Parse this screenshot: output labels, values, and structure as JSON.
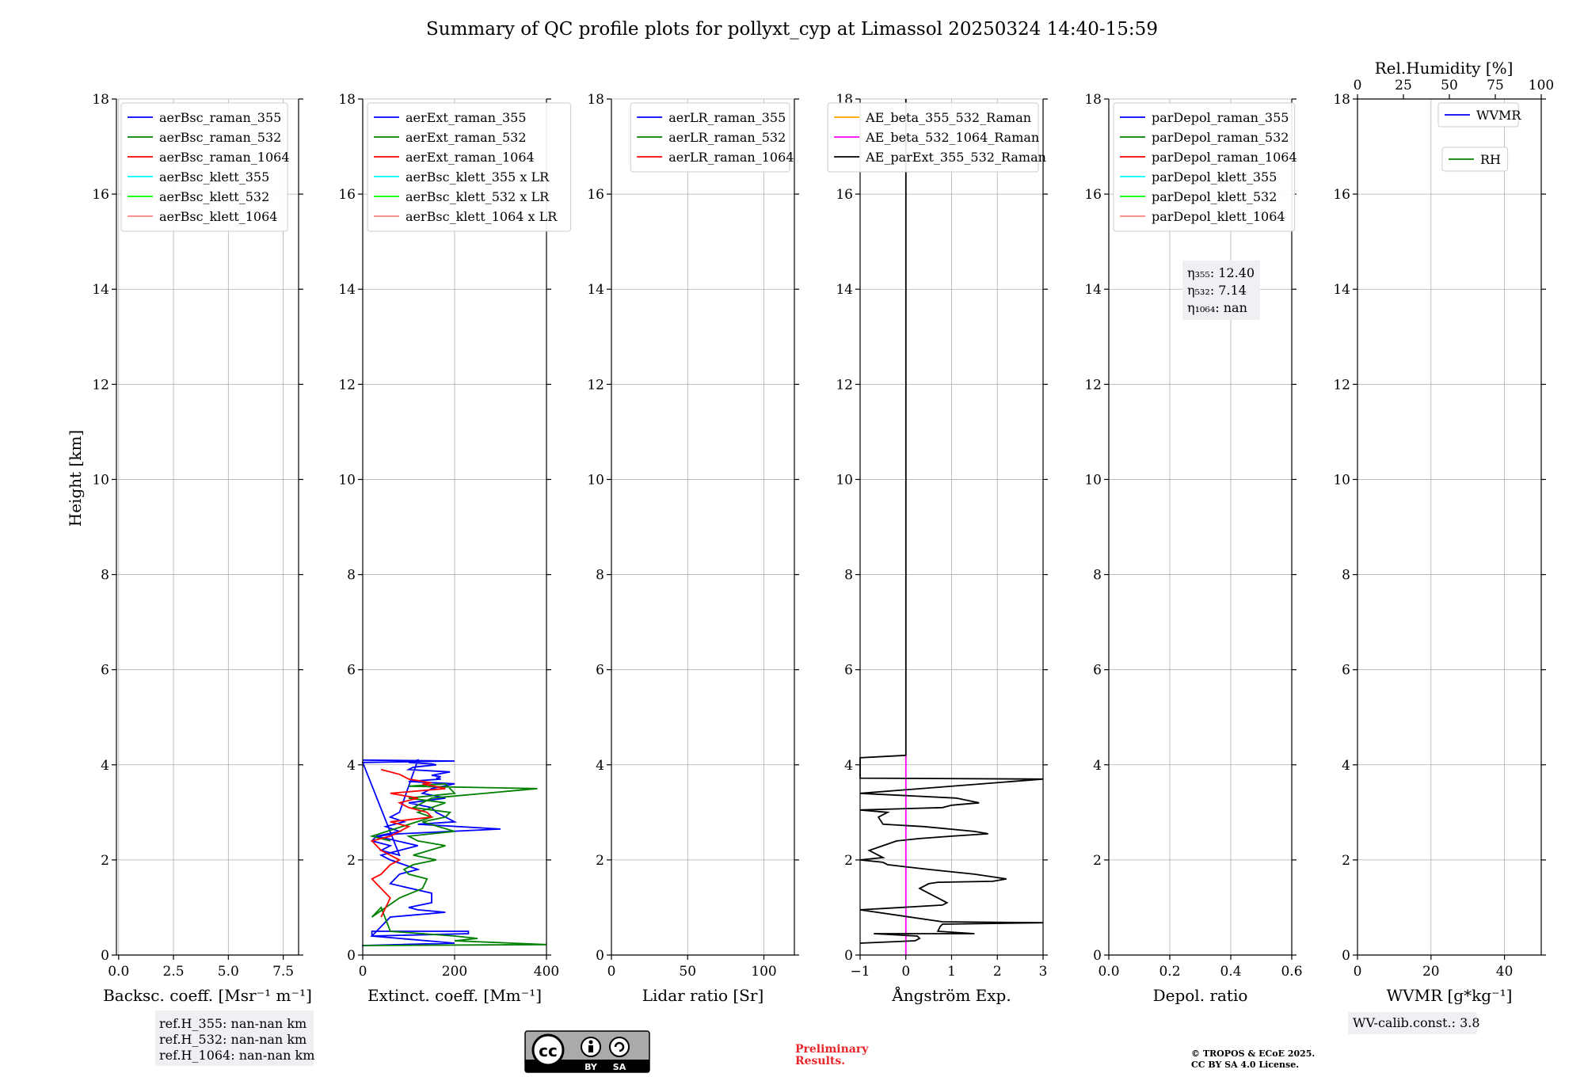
{
  "figure": {
    "title": "Summary of QC profile plots for pollyxt_cyp at Limassol 20250324 14:40-15:59",
    "ylabel": "Height [km]",
    "y_ticks": [
      "0",
      "2",
      "4",
      "6",
      "8",
      "10",
      "12",
      "14",
      "16",
      "18"
    ],
    "ref_h": [
      "ref.H_355: nan-nan km",
      "ref.H_532: nan-nan km",
      "ref.H_1064: nan-nan km"
    ],
    "cc_license_badge": {
      "labels": [
        "BY",
        "SA"
      ]
    },
    "preliminary": [
      "Preliminary",
      "Results."
    ],
    "copyright": [
      "© TROPOS & ECoE 2025.",
      "CC BY SA 4.0 License."
    ],
    "wv_calib": "WV-calib.const.: 3.8",
    "eta": [
      "η₃₅₅: 12.40",
      "η₅₃₂: 7.14",
      "η₁₀₆₄: nan"
    ],
    "rh_axis_label": "Rel.Humidity [%]",
    "rh_ticks": [
      "0",
      "25",
      "50",
      "75",
      "100"
    ]
  },
  "chart_data": [
    {
      "type": "line",
      "xlabel": "Backsc. coeff. [Msr⁻¹ m⁻¹]",
      "xlim": [
        -0.1,
        8.2
      ],
      "ylim": [
        0,
        18
      ],
      "x_ticks": [
        "0.0",
        "2.5",
        "5.0",
        "7.5"
      ],
      "grid": true,
      "legend_position": "top-left",
      "legend": [
        {
          "name": "aerBsc_raman_355",
          "color": "#0000ff"
        },
        {
          "name": "aerBsc_raman_532",
          "color": "#008000"
        },
        {
          "name": "aerBsc_raman_1064",
          "color": "#ff0000"
        },
        {
          "name": "aerBsc_klett_355",
          "color": "#00ffff"
        },
        {
          "name": "aerBsc_klett_532",
          "color": "#00ff00"
        },
        {
          "name": "aerBsc_klett_1064",
          "color": "#ff8080"
        }
      ],
      "series": []
    },
    {
      "type": "line",
      "xlabel": "Extinct. coeff. [Mm⁻¹]",
      "xlim": [
        0,
        400
      ],
      "ylim": [
        0,
        18
      ],
      "x_ticks": [
        "0",
        "200",
        "400"
      ],
      "grid": true,
      "legend_position": "top-left",
      "legend": [
        {
          "name": "aerExt_raman_355",
          "color": "#0000ff"
        },
        {
          "name": "aerExt_raman_532",
          "color": "#008000"
        },
        {
          "name": "aerExt_raman_1064",
          "color": "#ff0000"
        },
        {
          "name": "aerBsc_klett_355 x LR",
          "color": "#00ffff"
        },
        {
          "name": "aerBsc_klett_532 x LR",
          "color": "#00ff00"
        },
        {
          "name": "aerBsc_klett_1064 x LR",
          "color": "#ff8080"
        }
      ],
      "series": [
        {
          "name": "aerExt_raman_355",
          "color": "#0000ff",
          "x": [
            0,
            0,
            200,
            20,
            20,
            230,
            230,
            20,
            60,
            180,
            120,
            100,
            150,
            150,
            60,
            80,
            120,
            60,
            40,
            120,
            30,
            80,
            300,
            120,
            200,
            160,
            150,
            100,
            180,
            130,
            150,
            200,
            100,
            170,
            160,
            170,
            150,
            190,
            100,
            110,
            160,
            150,
            100,
            120,
            80,
            60,
            90,
            50,
            80,
            30,
            20,
            60,
            40,
            80,
            0,
            200,
            0
          ],
          "y": [
            0.18,
            0.2,
            0.25,
            0.4,
            0.5,
            0.5,
            0.45,
            0.4,
            0.8,
            0.9,
            0.95,
            1.0,
            1.1,
            1.3,
            1.5,
            1.7,
            1.8,
            2.0,
            2.1,
            2.3,
            2.5,
            2.55,
            2.65,
            2.75,
            2.8,
            3.0,
            3.1,
            3.2,
            3.3,
            3.4,
            3.5,
            3.6,
            3.65,
            3.7,
            3.72,
            3.75,
            3.78,
            3.85,
            3.9,
            3.95,
            4.0,
            4.02,
            4.05,
            4.1,
            3.0,
            2.9,
            2.8,
            2.7,
            2.6,
            2.5,
            2.4,
            2.3,
            2.2,
            2.1,
            4.05,
            4.08,
            4.1
          ]
        },
        {
          "name": "aerExt_raman_532",
          "color": "#008000",
          "x": [
            0,
            400,
            200,
            250,
            200,
            60,
            40,
            20,
            80,
            130,
            140,
            100,
            90,
            110,
            160,
            110,
            180,
            120,
            100,
            200,
            130,
            180,
            190,
            110,
            150,
            380,
            100,
            180,
            200,
            100,
            180,
            120,
            150,
            20,
            60
          ],
          "y": [
            0.2,
            0.22,
            0.3,
            0.35,
            0.4,
            0.5,
            1.0,
            0.8,
            1.2,
            1.4,
            1.6,
            1.7,
            1.8,
            1.9,
            2.0,
            2.1,
            2.3,
            2.4,
            2.5,
            2.6,
            2.8,
            2.9,
            3.0,
            3.1,
            3.3,
            3.5,
            3.55,
            3.6,
            3.4,
            3.3,
            3.2,
            3.0,
            2.9,
            2.5,
            2.4
          ]
        },
        {
          "name": "aerExt_raman_1064",
          "color": "#ff0000",
          "x": [
            40,
            50,
            60,
            40,
            30,
            20,
            40,
            60,
            80,
            40,
            20,
            60,
            80,
            100,
            60,
            150,
            140,
            100,
            80,
            120,
            60,
            180,
            130,
            150,
            100,
            80,
            40
          ],
          "y": [
            0.8,
            1.0,
            1.2,
            1.4,
            1.5,
            1.6,
            1.7,
            1.9,
            2.0,
            2.2,
            2.4,
            2.5,
            2.6,
            2.7,
            2.8,
            2.9,
            3.0,
            3.1,
            3.2,
            3.3,
            3.4,
            3.5,
            3.6,
            3.62,
            3.7,
            3.8,
            3.9
          ]
        }
      ]
    },
    {
      "type": "line",
      "xlabel": "Lidar ratio [Sr]",
      "xlim": [
        0,
        120
      ],
      "ylim": [
        0,
        18
      ],
      "x_ticks": [
        "0",
        "50",
        "100"
      ],
      "grid": true,
      "legend_position": "top-right",
      "legend": [
        {
          "name": "aerLR_raman_355",
          "color": "#0000ff"
        },
        {
          "name": "aerLR_raman_532",
          "color": "#008000"
        },
        {
          "name": "aerLR_raman_1064",
          "color": "#ff0000"
        }
      ],
      "series": []
    },
    {
      "type": "line",
      "xlabel": "Ångström Exp.",
      "xlim": [
        -1,
        3
      ],
      "ylim": [
        0,
        18
      ],
      "x_ticks": [
        "−1",
        "0",
        "1",
        "2",
        "3"
      ],
      "grid": true,
      "legend_position": "top-right",
      "legend": [
        {
          "name": "AE_beta_355_532_Raman",
          "color": "#ffa500"
        },
        {
          "name": "AE_beta_532_1064_Raman",
          "color": "#ff00ff"
        },
        {
          "name": "AE_parExt_355_532_Raman",
          "color": "#000000"
        }
      ],
      "series": [
        {
          "name": "AE_beta_532_1064_Raman",
          "color": "#ff00ff",
          "x": [
            0,
            0
          ],
          "y": [
            0,
            4.2
          ]
        },
        {
          "name": "AE_parExt_355_532_Raman",
          "color": "#000000",
          "x": [
            -1,
            0.2,
            0.3,
            0.25,
            -0.7,
            1.5,
            0.7,
            0.75,
            0.8,
            3.0,
            0.8,
            -1.0,
            0.8,
            0.9,
            0.7,
            0.5,
            0.3,
            0.5,
            0.7,
            1.9,
            2.2,
            1.5,
            0.5,
            -0.4,
            -0.5,
            -1.0,
            -0.5,
            -0.6,
            -0.8,
            -0.5,
            -0.2,
            0.3,
            1.0,
            1.8,
            1.5,
            0.4,
            -0.5,
            -0.6,
            -0.4,
            -1.0,
            0.8,
            1.0,
            1.6,
            1.1,
            -1.0,
            3.0,
            -1.0,
            -1.0,
            0,
            0,
            0
          ],
          "y": [
            0.25,
            0.3,
            0.35,
            0.4,
            0.45,
            0.45,
            0.5,
            0.6,
            0.65,
            0.68,
            0.7,
            0.95,
            1.05,
            1.1,
            1.2,
            1.3,
            1.4,
            1.5,
            1.53,
            1.55,
            1.6,
            1.7,
            1.8,
            1.9,
            1.95,
            2.0,
            2.05,
            2.1,
            2.2,
            2.3,
            2.4,
            2.45,
            2.5,
            2.55,
            2.6,
            2.7,
            2.75,
            2.9,
            3.0,
            3.05,
            3.1,
            3.15,
            3.2,
            3.3,
            3.4,
            3.7,
            3.72,
            4.15,
            4.2,
            10,
            18
          ]
        }
      ]
    },
    {
      "type": "line",
      "xlabel": "Depol. ratio",
      "xlim": [
        0,
        0.6
      ],
      "ylim": [
        0,
        18
      ],
      "x_ticks": [
        "0.0",
        "0.2",
        "0.4",
        "0.6"
      ],
      "grid": true,
      "legend_position": "top-left",
      "legend": [
        {
          "name": "parDepol_raman_355",
          "color": "#0000ff"
        },
        {
          "name": "parDepol_raman_532",
          "color": "#008000"
        },
        {
          "name": "parDepol_raman_1064",
          "color": "#ff0000"
        },
        {
          "name": "parDepol_klett_355",
          "color": "#00ffff"
        },
        {
          "name": "parDepol_klett_532",
          "color": "#00ff00"
        },
        {
          "name": "parDepol_klett_1064",
          "color": "#ff8080"
        }
      ],
      "series": []
    },
    {
      "type": "line",
      "xlabel": "WVMR [g*kg⁻¹]",
      "xlim": [
        0,
        50
      ],
      "ylim": [
        0,
        18
      ],
      "x_ticks": [
        "0",
        "20",
        "40"
      ],
      "grid": true,
      "legend_position": "top-right",
      "legend": [
        {
          "name": "WVMR",
          "color": "#0000ff"
        },
        {
          "name": "RH",
          "color": "#008000"
        }
      ],
      "series": []
    }
  ]
}
